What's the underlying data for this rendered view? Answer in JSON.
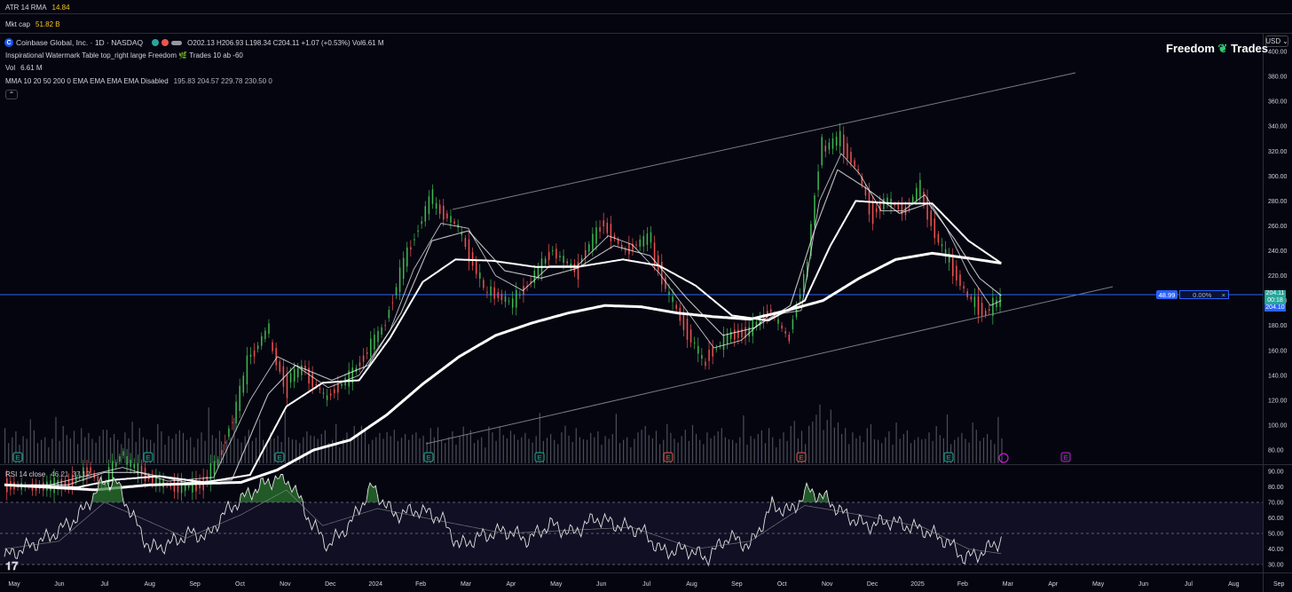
{
  "top_panels": {
    "atr": {
      "label": "ATR 14 RMA",
      "value": "14.84"
    },
    "mktcap": {
      "label": "Mkt cap",
      "value": "51.82 B"
    }
  },
  "legend": {
    "symbol_title": "Coinbase Global, Inc. · 1D · NASDAQ",
    "ohlc": "O202.13 H206.93 L198.34 C204.11 +1.07 (+0.53%) Vol6.61 M",
    "line2": "Inspirational Watermark Table top_right large Freedom 🌿 Trades 10 ab -60",
    "vol_label": "Vol",
    "vol_value": "6.61 M",
    "mma_label": "MMA 10 20 50 200 0 EMA EMA EMA EMA Disabled",
    "mma_values": "195.83 204.57 229.78 230.50 0",
    "collapse_icon": "chevron-up-icon"
  },
  "brand": {
    "name": "Freedom",
    "name2": "Trades"
  },
  "currency": "USD",
  "price_tags": {
    "last": "204.11",
    "countdown": "00:18",
    "ma": "204.10"
  },
  "measure": {
    "left": "48.99",
    "pct": "0.00%",
    "close": "×"
  },
  "rsi": {
    "label": "RSI 14 close",
    "v1": "46.21",
    "v2": "37.12"
  },
  "colors": {
    "up": "#26a69a",
    "down": "#ef5350",
    "up_bright": "#39d353",
    "ma": "#ffffff",
    "hline": "#2962ff",
    "channel": "#787b86",
    "rsi_band": "#100f24"
  },
  "chart_data": {
    "type": "line",
    "title": "Coinbase Global, Inc. · 1D · NASDAQ",
    "price_axis": {
      "ticks": [
        80,
        100,
        120,
        140,
        160,
        180,
        200,
        220,
        240,
        260,
        280,
        300,
        320,
        340,
        360,
        380,
        400
      ],
      "range": [
        73,
        405
      ]
    },
    "rsi_axis": {
      "ticks": [
        30,
        40,
        50,
        60,
        70,
        80,
        90
      ],
      "range": [
        27,
        93
      ]
    },
    "x_labels": [
      "May",
      "Jun",
      "Jul",
      "Aug",
      "Sep",
      "Oct",
      "Nov",
      "Dec",
      "2024",
      "Feb",
      "Mar",
      "Apr",
      "May",
      "Jun",
      "Jul",
      "Aug",
      "Sep",
      "Oct",
      "Nov",
      "Dec",
      "2025",
      "Feb",
      "Mar",
      "Apr",
      "May",
      "Jun",
      "Jul",
      "Aug",
      "Sep"
    ],
    "series": [
      {
        "name": "Price",
        "values": [
          [
            0,
            52
          ],
          [
            18,
            50
          ],
          [
            35,
            53
          ],
          [
            47,
            63
          ],
          [
            55,
            53
          ],
          [
            65,
            75
          ],
          [
            80,
            58
          ],
          [
            90,
            52
          ],
          [
            100,
            50
          ],
          [
            110,
            53
          ],
          [
            118,
            70
          ],
          [
            128,
            110
          ],
          [
            135,
            150
          ],
          [
            145,
            175
          ],
          [
            155,
            135
          ],
          [
            165,
            145
          ],
          [
            178,
            122
          ],
          [
            192,
            140
          ],
          [
            210,
            180
          ],
          [
            222,
            235
          ],
          [
            235,
            280
          ],
          [
            250,
            260
          ],
          [
            265,
            210
          ],
          [
            280,
            198
          ],
          [
            290,
            215
          ],
          [
            302,
            240
          ],
          [
            315,
            225
          ],
          [
            330,
            262
          ],
          [
            342,
            240
          ],
          [
            355,
            250
          ],
          [
            365,
            210
          ],
          [
            375,
            180
          ],
          [
            385,
            152
          ],
          [
            400,
            172
          ],
          [
            410,
            175
          ],
          [
            422,
            192
          ],
          [
            432,
            170
          ],
          [
            442,
            225
          ],
          [
            450,
            320
          ],
          [
            460,
            330
          ],
          [
            470,
            305
          ],
          [
            478,
            270
          ],
          [
            486,
            280
          ],
          [
            496,
            272
          ],
          [
            504,
            290
          ],
          [
            514,
            250
          ],
          [
            524,
            222
          ],
          [
            530,
            205
          ],
          [
            540,
            190
          ],
          [
            548,
            200
          ]
        ]
      },
      {
        "name": "MMA 10",
        "values": [
          [
            0,
            52
          ],
          [
            25,
            52
          ],
          [
            47,
            60
          ],
          [
            65,
            66
          ],
          [
            90,
            55
          ],
          [
            115,
            58
          ],
          [
            135,
            120
          ],
          [
            150,
            155
          ],
          [
            160,
            148
          ],
          [
            178,
            130
          ],
          [
            195,
            140
          ],
          [
            212,
            176
          ],
          [
            225,
            225
          ],
          [
            240,
            262
          ],
          [
            255,
            258
          ],
          [
            270,
            220
          ],
          [
            285,
            208
          ],
          [
            300,
            228
          ],
          [
            315,
            228
          ],
          [
            332,
            252
          ],
          [
            345,
            245
          ],
          [
            360,
            222
          ],
          [
            375,
            192
          ],
          [
            390,
            162
          ],
          [
            405,
            168
          ],
          [
            420,
            188
          ],
          [
            438,
            192
          ],
          [
            448,
            280
          ],
          [
            460,
            318
          ],
          [
            470,
            302
          ],
          [
            482,
            272
          ],
          [
            494,
            272
          ],
          [
            506,
            285
          ],
          [
            518,
            258
          ],
          [
            530,
            222
          ],
          [
            542,
            196
          ],
          [
            548,
            200
          ]
        ]
      },
      {
        "name": "MMA 20",
        "values": [
          [
            0,
            52
          ],
          [
            35,
            52
          ],
          [
            55,
            62
          ],
          [
            75,
            62
          ],
          [
            100,
            54
          ],
          [
            125,
            56
          ],
          [
            145,
            125
          ],
          [
            160,
            148
          ],
          [
            180,
            136
          ],
          [
            200,
            148
          ],
          [
            218,
            190
          ],
          [
            235,
            248
          ],
          [
            255,
            256
          ],
          [
            275,
            224
          ],
          [
            295,
            218
          ],
          [
            315,
            226
          ],
          [
            335,
            244
          ],
          [
            355,
            236
          ],
          [
            375,
            202
          ],
          [
            395,
            172
          ],
          [
            412,
            178
          ],
          [
            432,
            196
          ],
          [
            445,
            255
          ],
          [
            458,
            305
          ],
          [
            474,
            290
          ],
          [
            492,
            270
          ],
          [
            508,
            278
          ],
          [
            522,
            250
          ],
          [
            536,
            218
          ],
          [
            548,
            204
          ]
        ]
      },
      {
        "name": "MMA 50",
        "values": [
          [
            0,
            52
          ],
          [
            40,
            50
          ],
          [
            60,
            56
          ],
          [
            85,
            59
          ],
          [
            110,
            54
          ],
          [
            135,
            60
          ],
          [
            155,
            115
          ],
          [
            175,
            134
          ],
          [
            195,
            136
          ],
          [
            212,
            170
          ],
          [
            230,
            215
          ],
          [
            248,
            233
          ],
          [
            268,
            232
          ],
          [
            292,
            227
          ],
          [
            315,
            227
          ],
          [
            340,
            233
          ],
          [
            360,
            228
          ],
          [
            380,
            212
          ],
          [
            400,
            188
          ],
          [
            420,
            184
          ],
          [
            440,
            200
          ],
          [
            454,
            244
          ],
          [
            468,
            280
          ],
          [
            488,
            278
          ],
          [
            510,
            278
          ],
          [
            530,
            248
          ],
          [
            548,
            230
          ]
        ]
      },
      {
        "name": "MMA 200",
        "values": [
          [
            0,
            52
          ],
          [
            50,
            48
          ],
          [
            80,
            52
          ],
          [
            105,
            53
          ],
          [
            130,
            54
          ],
          [
            150,
            64
          ],
          [
            170,
            80
          ],
          [
            190,
            88
          ],
          [
            210,
            108
          ],
          [
            230,
            133
          ],
          [
            250,
            155
          ],
          [
            270,
            172
          ],
          [
            290,
            182
          ],
          [
            310,
            190
          ],
          [
            330,
            196
          ],
          [
            350,
            195
          ],
          [
            370,
            190
          ],
          [
            390,
            187
          ],
          [
            410,
            185
          ],
          [
            430,
            192
          ],
          [
            450,
            200
          ],
          [
            470,
            218
          ],
          [
            490,
            233
          ],
          [
            510,
            238
          ],
          [
            530,
            234
          ],
          [
            548,
            230
          ]
        ]
      }
    ],
    "rsi_series": {
      "name": "RSI 14",
      "values": [
        [
          0,
          35
        ],
        [
          10,
          40
        ],
        [
          25,
          48
        ],
        [
          40,
          60
        ],
        [
          55,
          84
        ],
        [
          62,
          82
        ],
        [
          70,
          62
        ],
        [
          80,
          40
        ],
        [
          90,
          43
        ],
        [
          102,
          50
        ],
        [
          112,
          48
        ],
        [
          120,
          62
        ],
        [
          130,
          72
        ],
        [
          140,
          80
        ],
        [
          150,
          86
        ],
        [
          158,
          82
        ],
        [
          168,
          58
        ],
        [
          178,
          42
        ],
        [
          190,
          56
        ],
        [
          202,
          80
        ],
        [
          214,
          62
        ],
        [
          228,
          65
        ],
        [
          240,
          60
        ],
        [
          250,
          42
        ],
        [
          262,
          48
        ],
        [
          275,
          52
        ],
        [
          288,
          46
        ],
        [
          300,
          56
        ],
        [
          312,
          50
        ],
        [
          325,
          60
        ],
        [
          338,
          55
        ],
        [
          350,
          52
        ],
        [
          362,
          38
        ],
        [
          375,
          40
        ],
        [
          386,
          34
        ],
        [
          398,
          48
        ],
        [
          410,
          42
        ],
        [
          422,
          68
        ],
        [
          432,
          64
        ],
        [
          442,
          78
        ],
        [
          452,
          72
        ],
        [
          462,
          62
        ],
        [
          474,
          55
        ],
        [
          486,
          58
        ],
        [
          496,
          55
        ],
        [
          506,
          52
        ],
        [
          518,
          45
        ],
        [
          528,
          34
        ],
        [
          538,
          38
        ],
        [
          548,
          46
        ]
      ]
    },
    "rsi_ma": {
      "name": "RSI MA",
      "values": [
        [
          0,
          40
        ],
        [
          30,
          45
        ],
        [
          55,
          70
        ],
        [
          75,
          60
        ],
        [
          100,
          47
        ],
        [
          130,
          62
        ],
        [
          155,
          78
        ],
        [
          175,
          55
        ],
        [
          205,
          66
        ],
        [
          240,
          58
        ],
        [
          275,
          50
        ],
        [
          310,
          52
        ],
        [
          345,
          54
        ],
        [
          380,
          40
        ],
        [
          410,
          45
        ],
        [
          440,
          68
        ],
        [
          470,
          62
        ],
        [
          505,
          54
        ],
        [
          530,
          40
        ],
        [
          548,
          37
        ]
      ]
    },
    "volume": [
      44,
      38,
      49,
      60,
      35,
      51,
      46,
      55,
      62,
      38,
      44,
      49,
      30,
      46,
      58,
      42,
      70,
      53,
      47,
      61,
      36,
      44,
      49,
      57,
      46,
      39,
      51,
      63,
      42,
      48,
      55,
      44,
      36,
      58,
      47,
      52,
      40,
      66,
      49,
      45
    ]
  }
}
